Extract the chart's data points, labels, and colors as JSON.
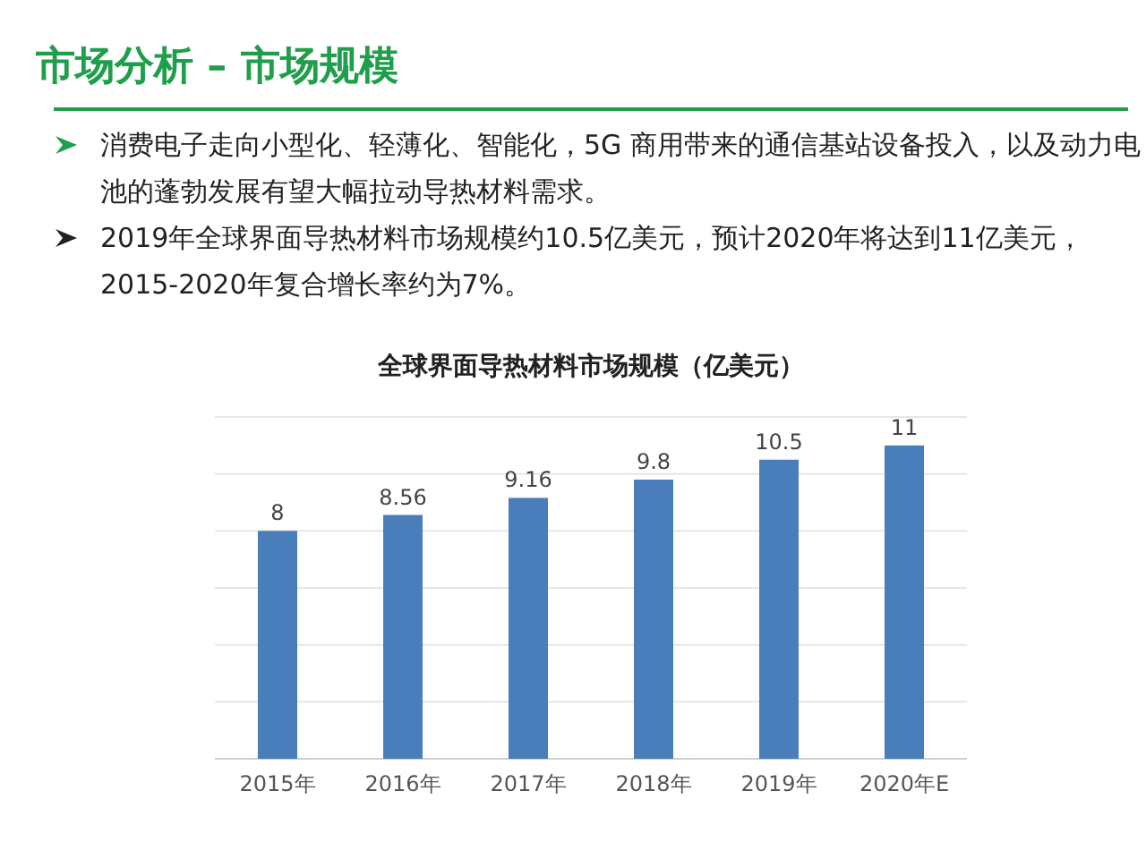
{
  "chart_data": {
    "type": "bar",
    "title": "市场分析 – 市场规模",
    "subtitle": "全球界面导热材料市场规模（亿美元）",
    "annotations": [
      "消费电子走向小型化、轻薄化、智能化，5G 商用带来的通信基站设备投入，以及动力电池的蓬勃发展有望大幅拉动导热材料需求。",
      "2019年全球界面导热材料市场规模约10.5亿美元，预计2020年将达到11亿美元，2015-2020年复合增长率约为7%。"
    ],
    "categories": [
      "2015年",
      "2016年",
      "2017年",
      "2018年",
      "2019年",
      "2020年E"
    ],
    "values": [
      8,
      8.56,
      9.16,
      9.8,
      10.5,
      11
    ],
    "color": "#4a7ebb",
    "data_labels": true,
    "grid": "y",
    "tick_labels": "x",
    "ylim": [
      0,
      12
    ],
    "yticks": [
      {
        "value": 0,
        "label": null
      },
      {
        "value": 2,
        "label": null
      },
      {
        "value": 4,
        "label": null
      },
      {
        "value": 6,
        "label": null
      },
      {
        "value": 8,
        "label": null
      },
      {
        "value": 10,
        "label": null
      },
      {
        "value": 12,
        "label": null
      }
    ]
  }
}
